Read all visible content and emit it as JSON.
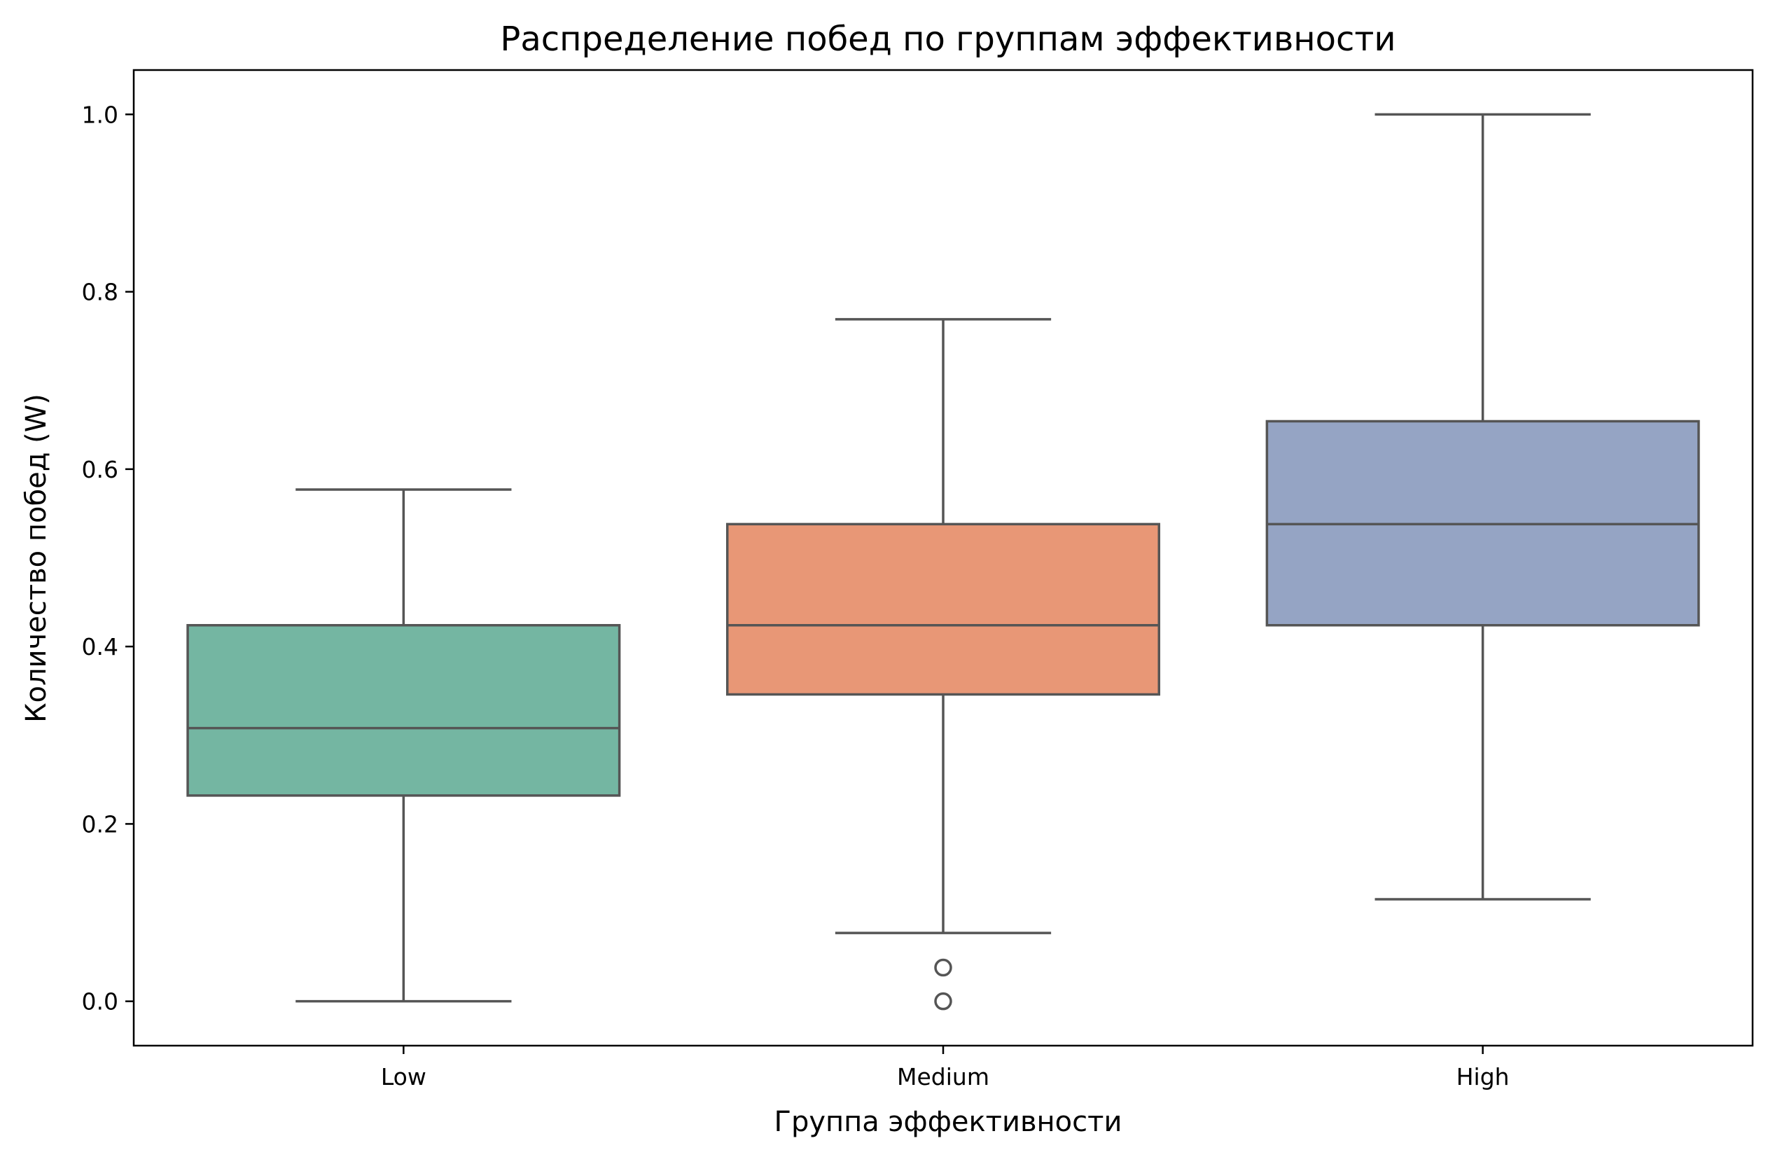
{
  "chart_data": {
    "type": "box",
    "title": "Распределение побед по группам эффективности",
    "xlabel": "Группа эффективности",
    "ylabel": "Количество побед (W)",
    "ylim": [
      -0.05,
      1.05
    ],
    "yticks": [
      0.0,
      0.2,
      0.4,
      0.6,
      0.8,
      1.0
    ],
    "ytick_labels": [
      "0.0",
      "0.2",
      "0.4",
      "0.6",
      "0.8",
      "1.0"
    ],
    "grid": false,
    "legend": "none",
    "categories": [
      "Low",
      "Medium",
      "High"
    ],
    "boxes": [
      {
        "name": "Low",
        "whisker_low": 0.0,
        "q1": 0.232,
        "median": 0.308,
        "q3": 0.424,
        "whisker_high": 0.577,
        "outliers": [],
        "color": "#74b6a2"
      },
      {
        "name": "Medium",
        "whisker_low": 0.077,
        "q1": 0.346,
        "median": 0.424,
        "q3": 0.538,
        "whisker_high": 0.769,
        "outliers": [
          0.038,
          0.0
        ],
        "color": "#e89776"
      },
      {
        "name": "High",
        "whisker_low": 0.115,
        "q1": 0.424,
        "median": 0.538,
        "q3": 0.654,
        "whisker_high": 1.0,
        "outliers": [],
        "color": "#95a4c4"
      }
    ],
    "line_color": "#555555"
  }
}
